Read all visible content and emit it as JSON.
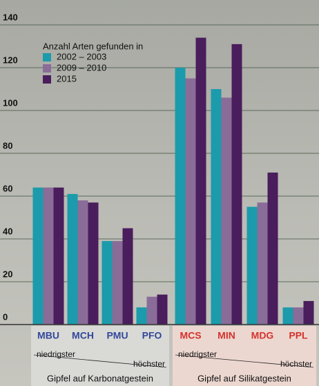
{
  "chart_data": {
    "type": "bar",
    "legend_title": "Anzahl Arten gefunden in",
    "groups": [
      {
        "label": "Gipfel auf Karbonatgestein",
        "low": "niedrigster",
        "high": "höchster",
        "color": "#33479a",
        "background": "#d9dad6",
        "categories": [
          "MBU",
          "MCH",
          "PMU",
          "PFO"
        ]
      },
      {
        "label": "Gipfel auf Silikatgestein",
        "low": "niedrigster",
        "high": "höchster",
        "color": "#d4322c",
        "background": "#ecd7d0",
        "categories": [
          "MCS",
          "MIN",
          "MDG",
          "PPL"
        ]
      }
    ],
    "series": [
      {
        "name": "2002 – 2003",
        "color": "#1b9bab",
        "values": [
          64,
          61,
          39,
          8,
          120,
          110,
          55,
          8
        ]
      },
      {
        "name": "2009 – 2010",
        "color": "#8a6c98",
        "values": [
          64,
          58,
          39,
          13,
          115,
          106,
          57,
          8
        ]
      },
      {
        "name": "2015",
        "color": "#4a1d5c",
        "values": [
          64,
          57,
          45,
          14,
          134,
          131,
          71,
          11
        ]
      }
    ],
    "ylim": [
      0,
      140
    ],
    "yticks": [
      0,
      20,
      40,
      60,
      80,
      100,
      120,
      140
    ],
    "grid": true
  }
}
